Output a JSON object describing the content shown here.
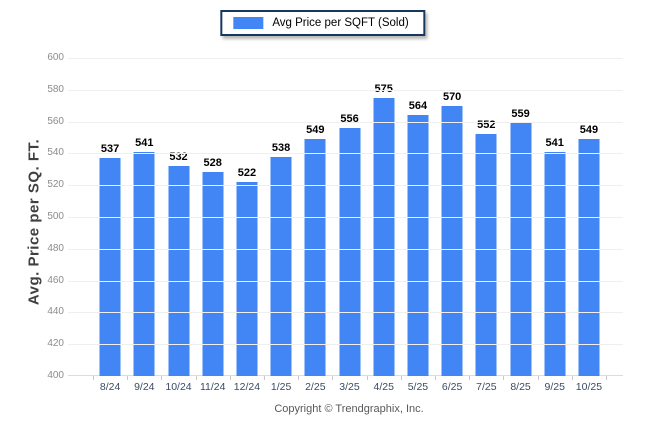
{
  "legend": {
    "label": "Avg Price per SQFT (Sold)"
  },
  "chart_data": {
    "type": "bar",
    "title": "",
    "categories": [
      "8/24",
      "9/24",
      "10/24",
      "11/24",
      "12/24",
      "1/25",
      "2/25",
      "3/25",
      "4/25",
      "5/25",
      "6/25",
      "7/25",
      "8/25",
      "9/25",
      "10/25"
    ],
    "values": [
      537,
      541,
      532,
      528,
      522,
      538,
      549,
      556,
      575,
      564,
      570,
      552,
      559,
      541,
      549
    ],
    "series_name": "Avg Price per SQFT (Sold)",
    "xlabel": "",
    "ylabel": "Avg. Price per SQ. FT.",
    "ylim": [
      400,
      600
    ],
    "ytick_step": 20,
    "grid": "horizontal",
    "legend_position": "top-center",
    "bar_color": "#4285F4",
    "value_labels": true
  },
  "footer": {
    "copyright": "Copyright © Trendgraphix, Inc."
  }
}
